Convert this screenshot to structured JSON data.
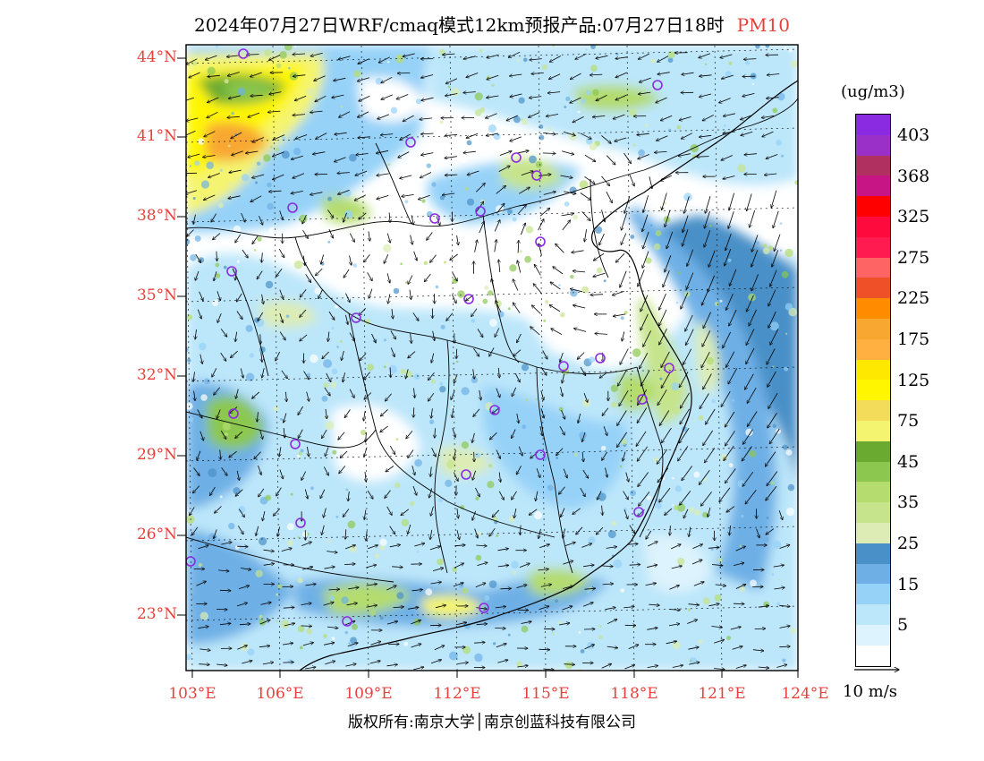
{
  "header": {
    "title": "2024年07月27日WRF/cmaq模式12km预报产品:07月27日18时",
    "variable": "PM10"
  },
  "map": {
    "lat_labels": [
      "44°N",
      "41°N",
      "38°N",
      "35°N",
      "32°N",
      "29°N",
      "26°N",
      "23°N"
    ],
    "lon_labels": [
      "103°E",
      "106°E",
      "109°E",
      "112°E",
      "115°E",
      "118°E",
      "121°E",
      "124°E"
    ],
    "colors": {
      "label": "#e8413c",
      "marker": "#8a2be2",
      "border": "#000000"
    }
  },
  "legend": {
    "units": "(ug/m3)",
    "labels": [
      "403",
      "368",
      "325",
      "275",
      "225",
      "175",
      "125",
      "75",
      "45",
      "35",
      "25",
      "15",
      "5"
    ],
    "colors": [
      "#8a2be2",
      "#9b30c8",
      "#b03060",
      "#c71585",
      "#ff0000",
      "#ff0a3c",
      "#ff1a50",
      "#ff6464",
      "#f05028",
      "#ff8c00",
      "#f8a830",
      "#ffb040",
      "#ffe800",
      "#fff600",
      "#f2dc5a",
      "#f4f470",
      "#6aaa30",
      "#8cc850",
      "#b4dc6e",
      "#c6e48c",
      "#dcecb4",
      "#4a90c8",
      "#6eb0e6",
      "#96d2f8",
      "#bce6fa",
      "#ddf3fd",
      "#ffffff"
    ]
  },
  "wind_scale": {
    "label": "10 m/s"
  },
  "footer": {
    "copyright": "版权所有:南京大学│南京创蓝科技有限公司"
  }
}
